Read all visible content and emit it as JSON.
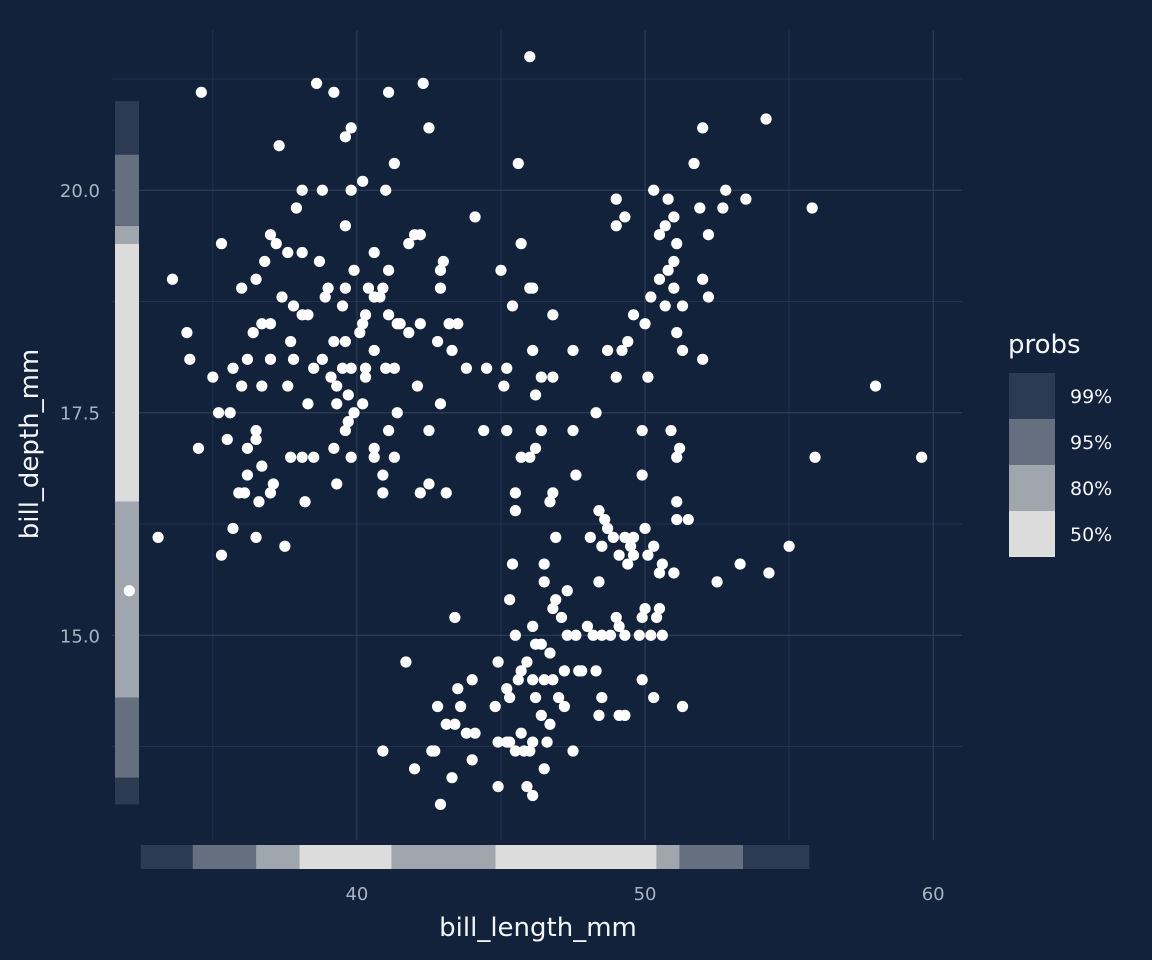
{
  "chart_data": {
    "type": "scatter",
    "title": "",
    "xlabel": "bill_length_mm",
    "ylabel": "bill_depth_mm",
    "xlim": [
      31.5,
      61.0
    ],
    "ylim": [
      12.7,
      21.8
    ],
    "x_ticks": [
      40,
      50,
      60
    ],
    "x_tick_labels": [
      "40",
      "50",
      "60"
    ],
    "y_ticks": [
      15.0,
      17.5,
      20.0
    ],
    "y_tick_labels": [
      "15.0",
      "17.5",
      "20.0"
    ],
    "grid": true,
    "legend": {
      "title": "probs",
      "position": "right",
      "entries": [
        {
          "label": "99%",
          "color": "#2c3b52"
        },
        {
          "label": "95%",
          "color": "#64707f"
        },
        {
          "label": "80%",
          "color": "#a0a6ad"
        },
        {
          "label": "50%",
          "color": "#dcdcdc"
        }
      ]
    },
    "marginal_x": [
      {
        "from": 32.5,
        "to": 34.3,
        "level": "99%"
      },
      {
        "from": 34.3,
        "to": 36.5,
        "level": "95%"
      },
      {
        "from": 36.5,
        "to": 38.0,
        "level": "80%"
      },
      {
        "from": 38.0,
        "to": 41.2,
        "level": "50%"
      },
      {
        "from": 41.2,
        "to": 44.8,
        "level": "80%"
      },
      {
        "from": 44.8,
        "to": 50.4,
        "level": "50%"
      },
      {
        "from": 50.4,
        "to": 51.2,
        "level": "80%"
      },
      {
        "from": 51.2,
        "to": 53.4,
        "level": "95%"
      },
      {
        "from": 53.4,
        "to": 55.7,
        "level": "99%"
      }
    ],
    "marginal_y": [
      {
        "from": 13.1,
        "to": 13.4,
        "level": "99%"
      },
      {
        "from": 13.4,
        "to": 14.3,
        "level": "95%"
      },
      {
        "from": 14.3,
        "to": 16.5,
        "level": "80%"
      },
      {
        "from": 16.5,
        "to": 19.4,
        "level": "50%"
      },
      {
        "from": 19.4,
        "to": 19.6,
        "level": "80%"
      },
      {
        "from": 19.6,
        "to": 20.4,
        "level": "95%"
      },
      {
        "from": 20.4,
        "to": 21.0,
        "level": "99%"
      }
    ],
    "points": [
      [
        46.0,
        21.5
      ],
      [
        38.6,
        21.2
      ],
      [
        39.2,
        21.1
      ],
      [
        34.6,
        21.1
      ],
      [
        41.1,
        21.1
      ],
      [
        42.3,
        21.2
      ],
      [
        39.8,
        20.7
      ],
      [
        39.6,
        20.6
      ],
      [
        42.5,
        20.7
      ],
      [
        54.2,
        20.8
      ],
      [
        52.0,
        20.7
      ],
      [
        37.3,
        20.5
      ],
      [
        41.3,
        20.3
      ],
      [
        45.6,
        20.3
      ],
      [
        51.7,
        20.3
      ],
      [
        40.2,
        20.1
      ],
      [
        38.1,
        20.0
      ],
      [
        38.8,
        20.0
      ],
      [
        39.8,
        20.0
      ],
      [
        41.0,
        20.0
      ],
      [
        50.3,
        20.0
      ],
      [
        52.8,
        20.0
      ],
      [
        53.5,
        19.9
      ],
      [
        49.0,
        19.9
      ],
      [
        50.8,
        19.9
      ],
      [
        55.8,
        19.8
      ],
      [
        37.9,
        19.8
      ],
      [
        51.9,
        19.8
      ],
      [
        52.7,
        19.8
      ],
      [
        49.3,
        19.7
      ],
      [
        51.0,
        19.7
      ],
      [
        44.1,
        19.7
      ],
      [
        50.7,
        19.6
      ],
      [
        49.0,
        19.6
      ],
      [
        39.6,
        19.6
      ],
      [
        50.5,
        19.5
      ],
      [
        42.0,
        19.5
      ],
      [
        42.2,
        19.5
      ],
      [
        37.0,
        19.5
      ],
      [
        51.1,
        19.4
      ],
      [
        52.2,
        19.5
      ],
      [
        35.3,
        19.4
      ],
      [
        37.2,
        19.4
      ],
      [
        41.8,
        19.4
      ],
      [
        45.7,
        19.4
      ],
      [
        38.1,
        19.3
      ],
      [
        37.6,
        19.3
      ],
      [
        40.6,
        19.3
      ],
      [
        36.8,
        19.2
      ],
      [
        51.0,
        19.2
      ],
      [
        43.0,
        19.2
      ],
      [
        38.7,
        19.2
      ],
      [
        42.9,
        19.1
      ],
      [
        45.0,
        19.1
      ],
      [
        50.8,
        19.1
      ],
      [
        39.9,
        19.1
      ],
      [
        41.1,
        19.1
      ],
      [
        50.5,
        19.0
      ],
      [
        36.5,
        19.0
      ],
      [
        33.6,
        19.0
      ],
      [
        40.4,
        18.9
      ],
      [
        40.9,
        18.9
      ],
      [
        42.9,
        18.9
      ],
      [
        46.1,
        18.9
      ],
      [
        52.0,
        19.0
      ],
      [
        51.0,
        18.9
      ],
      [
        39.0,
        18.9
      ],
      [
        39.6,
        18.9
      ],
      [
        40.6,
        18.8
      ],
      [
        36.0,
        18.9
      ],
      [
        46.0,
        18.9
      ],
      [
        37.4,
        18.8
      ],
      [
        52.2,
        18.8
      ],
      [
        50.2,
        18.8
      ],
      [
        40.8,
        18.8
      ],
      [
        38.9,
        18.8
      ],
      [
        51.3,
        18.7
      ],
      [
        45.4,
        18.7
      ],
      [
        50.7,
        18.7
      ],
      [
        39.5,
        18.7
      ],
      [
        40.3,
        18.6
      ],
      [
        41.1,
        18.6
      ],
      [
        41.4,
        18.5
      ],
      [
        37.8,
        18.7
      ],
      [
        38.1,
        18.6
      ],
      [
        38.3,
        18.6
      ],
      [
        36.7,
        18.5
      ],
      [
        40.2,
        18.5
      ],
      [
        41.5,
        18.5
      ],
      [
        42.2,
        18.5
      ],
      [
        43.2,
        18.5
      ],
      [
        43.5,
        18.5
      ],
      [
        46.8,
        18.6
      ],
      [
        49.6,
        18.6
      ],
      [
        50.0,
        18.5
      ],
      [
        40.1,
        18.4
      ],
      [
        41.8,
        18.4
      ],
      [
        51.1,
        18.4
      ],
      [
        42.8,
        18.3
      ],
      [
        49.4,
        18.3
      ],
      [
        39.6,
        18.3
      ],
      [
        34.1,
        18.4
      ],
      [
        37.0,
        18.5
      ],
      [
        36.4,
        18.4
      ],
      [
        37.7,
        18.3
      ],
      [
        39.2,
        18.3
      ],
      [
        40.6,
        18.2
      ],
      [
        43.3,
        18.2
      ],
      [
        46.1,
        18.2
      ],
      [
        48.7,
        18.2
      ],
      [
        49.2,
        18.2
      ],
      [
        51.3,
        18.2
      ],
      [
        36.2,
        18.1
      ],
      [
        38.8,
        18.1
      ],
      [
        39.5,
        18.0
      ],
      [
        40.3,
        18.0
      ],
      [
        41.3,
        18.0
      ],
      [
        43.8,
        18.0
      ],
      [
        45.2,
        18.0
      ],
      [
        47.5,
        18.2
      ],
      [
        34.2,
        18.1
      ],
      [
        37.8,
        18.1
      ],
      [
        52.0,
        18.1
      ],
      [
        35.7,
        18.0
      ],
      [
        37.0,
        18.1
      ],
      [
        38.5,
        18.0
      ],
      [
        39.8,
        18.0
      ],
      [
        41.0,
        18.0
      ],
      [
        44.5,
        18.0
      ],
      [
        46.4,
        17.9
      ],
      [
        46.8,
        17.9
      ],
      [
        40.3,
        17.9
      ],
      [
        35.0,
        17.9
      ],
      [
        39.1,
        17.9
      ],
      [
        49.0,
        17.9
      ],
      [
        50.1,
        17.9
      ],
      [
        36.0,
        17.8
      ],
      [
        45.1,
        17.8
      ],
      [
        36.7,
        17.8
      ],
      [
        37.6,
        17.8
      ],
      [
        39.3,
        17.8
      ],
      [
        42.1,
        17.8
      ],
      [
        46.2,
        17.7
      ],
      [
        39.7,
        17.7
      ],
      [
        58.0,
        17.8
      ],
      [
        38.3,
        17.6
      ],
      [
        40.2,
        17.6
      ],
      [
        41.4,
        17.5
      ],
      [
        39.9,
        17.5
      ],
      [
        42.9,
        17.6
      ],
      [
        48.3,
        17.5
      ],
      [
        35.2,
        17.5
      ],
      [
        35.6,
        17.5
      ],
      [
        39.3,
        17.6
      ],
      [
        39.7,
        17.4
      ],
      [
        41.1,
        17.3
      ],
      [
        42.5,
        17.3
      ],
      [
        45.2,
        17.3
      ],
      [
        46.4,
        17.3
      ],
      [
        36.5,
        17.3
      ],
      [
        39.6,
        17.3
      ],
      [
        44.4,
        17.3
      ],
      [
        47.5,
        17.3
      ],
      [
        49.9,
        17.3
      ],
      [
        50.9,
        17.3
      ],
      [
        35.5,
        17.2
      ],
      [
        36.5,
        17.2
      ],
      [
        39.2,
        17.1
      ],
      [
        40.6,
        17.1
      ],
      [
        41.3,
        17.0
      ],
      [
        46.0,
        17.0
      ],
      [
        46.2,
        17.1
      ],
      [
        51.1,
        17.0
      ],
      [
        51.2,
        17.1
      ],
      [
        55.9,
        17.0
      ],
      [
        59.6,
        17.0
      ],
      [
        34.5,
        17.1
      ],
      [
        36.2,
        17.1
      ],
      [
        38.1,
        17.0
      ],
      [
        38.5,
        17.0
      ],
      [
        39.8,
        17.0
      ],
      [
        45.7,
        17.0
      ],
      [
        36.7,
        16.9
      ],
      [
        37.7,
        17.0
      ],
      [
        40.6,
        17.0
      ],
      [
        36.2,
        16.8
      ],
      [
        37.1,
        16.7
      ],
      [
        39.3,
        16.7
      ],
      [
        40.9,
        16.8
      ],
      [
        42.5,
        16.7
      ],
      [
        47.6,
        16.8
      ],
      [
        49.9,
        16.8
      ],
      [
        46.8,
        16.6
      ],
      [
        46.7,
        16.5
      ],
      [
        45.5,
        16.6
      ],
      [
        42.2,
        16.6
      ],
      [
        43.1,
        16.6
      ],
      [
        36.1,
        16.6
      ],
      [
        37.0,
        16.6
      ],
      [
        35.9,
        16.6
      ],
      [
        38.2,
        16.5
      ],
      [
        40.9,
        16.6
      ],
      [
        36.6,
        16.5
      ],
      [
        45.5,
        16.4
      ],
      [
        51.1,
        16.5
      ],
      [
        48.4,
        16.4
      ],
      [
        51.5,
        16.3
      ],
      [
        48.6,
        16.3
      ],
      [
        51.1,
        16.3
      ],
      [
        50.0,
        16.2
      ],
      [
        48.7,
        16.2
      ],
      [
        35.7,
        16.2
      ],
      [
        49.3,
        16.1
      ],
      [
        49.6,
        16.1
      ],
      [
        48.9,
        16.1
      ],
      [
        36.5,
        16.1
      ],
      [
        33.1,
        16.1
      ],
      [
        48.1,
        16.1
      ],
      [
        46.9,
        16.1
      ],
      [
        49.5,
        16.0
      ],
      [
        50.3,
        16.0
      ],
      [
        55.0,
        16.0
      ],
      [
        48.5,
        16.0
      ],
      [
        37.5,
        16.0
      ],
      [
        49.1,
        15.9
      ],
      [
        49.6,
        15.9
      ],
      [
        50.1,
        15.9
      ],
      [
        35.3,
        15.9
      ],
      [
        50.6,
        15.8
      ],
      [
        46.5,
        15.8
      ],
      [
        53.3,
        15.8
      ],
      [
        45.4,
        15.8
      ],
      [
        49.4,
        15.8
      ],
      [
        50.5,
        15.7
      ],
      [
        51.0,
        15.7
      ],
      [
        54.3,
        15.7
      ],
      [
        46.5,
        15.6
      ],
      [
        48.4,
        15.6
      ],
      [
        52.5,
        15.6
      ],
      [
        32.1,
        15.5
      ],
      [
        47.3,
        15.5
      ],
      [
        45.3,
        15.4
      ],
      [
        46.9,
        15.4
      ],
      [
        46.8,
        15.3
      ],
      [
        50.0,
        15.3
      ],
      [
        50.5,
        15.3
      ],
      [
        47.1,
        15.2
      ],
      [
        49.0,
        15.2
      ],
      [
        43.4,
        15.2
      ],
      [
        49.9,
        15.2
      ],
      [
        50.4,
        15.2
      ],
      [
        48.0,
        15.1
      ],
      [
        49.1,
        15.1
      ],
      [
        46.1,
        15.1
      ],
      [
        47.6,
        15.0
      ],
      [
        48.2,
        15.0
      ],
      [
        45.5,
        15.0
      ],
      [
        47.3,
        15.0
      ],
      [
        48.5,
        15.0
      ],
      [
        49.3,
        15.0
      ],
      [
        49.8,
        15.0
      ],
      [
        50.2,
        15.0
      ],
      [
        50.6,
        15.0
      ],
      [
        48.8,
        15.0
      ],
      [
        46.2,
        14.9
      ],
      [
        46.4,
        14.9
      ],
      [
        46.7,
        14.8
      ],
      [
        41.7,
        14.7
      ],
      [
        44.9,
        14.7
      ],
      [
        45.9,
        14.7
      ],
      [
        47.8,
        14.6
      ],
      [
        48.3,
        14.6
      ],
      [
        45.7,
        14.6
      ],
      [
        46.1,
        14.5
      ],
      [
        46.5,
        14.5
      ],
      [
        46.8,
        14.5
      ],
      [
        47.2,
        14.6
      ],
      [
        47.7,
        14.6
      ],
      [
        44.0,
        14.5
      ],
      [
        45.6,
        14.5
      ],
      [
        49.9,
        14.5
      ],
      [
        45.2,
        14.4
      ],
      [
        43.5,
        14.4
      ],
      [
        45.3,
        14.3
      ],
      [
        46.2,
        14.3
      ],
      [
        47.0,
        14.3
      ],
      [
        48.5,
        14.3
      ],
      [
        50.3,
        14.3
      ],
      [
        44.8,
        14.2
      ],
      [
        47.2,
        14.2
      ],
      [
        51.3,
        14.2
      ],
      [
        43.6,
        14.2
      ],
      [
        42.8,
        14.2
      ],
      [
        46.4,
        14.1
      ],
      [
        49.1,
        14.1
      ],
      [
        48.4,
        14.1
      ],
      [
        49.3,
        14.1
      ],
      [
        46.7,
        14.0
      ],
      [
        43.4,
        14.0
      ],
      [
        43.1,
        14.0
      ],
      [
        43.8,
        13.9
      ],
      [
        44.1,
        13.9
      ],
      [
        45.7,
        13.9
      ],
      [
        46.1,
        13.8
      ],
      [
        46.6,
        13.8
      ],
      [
        45.2,
        13.8
      ],
      [
        45.3,
        13.8
      ],
      [
        44.9,
        13.8
      ],
      [
        45.5,
        13.7
      ],
      [
        46.0,
        13.7
      ],
      [
        47.5,
        13.7
      ],
      [
        45.8,
        13.7
      ],
      [
        40.9,
        13.7
      ],
      [
        42.7,
        13.7
      ],
      [
        42.6,
        13.7
      ],
      [
        44.0,
        13.6
      ],
      [
        46.5,
        13.5
      ],
      [
        42.0,
        13.5
      ],
      [
        43.3,
        13.4
      ],
      [
        44.9,
        13.3
      ],
      [
        45.9,
        13.3
      ],
      [
        46.1,
        13.2
      ],
      [
        42.9,
        13.1
      ]
    ]
  }
}
